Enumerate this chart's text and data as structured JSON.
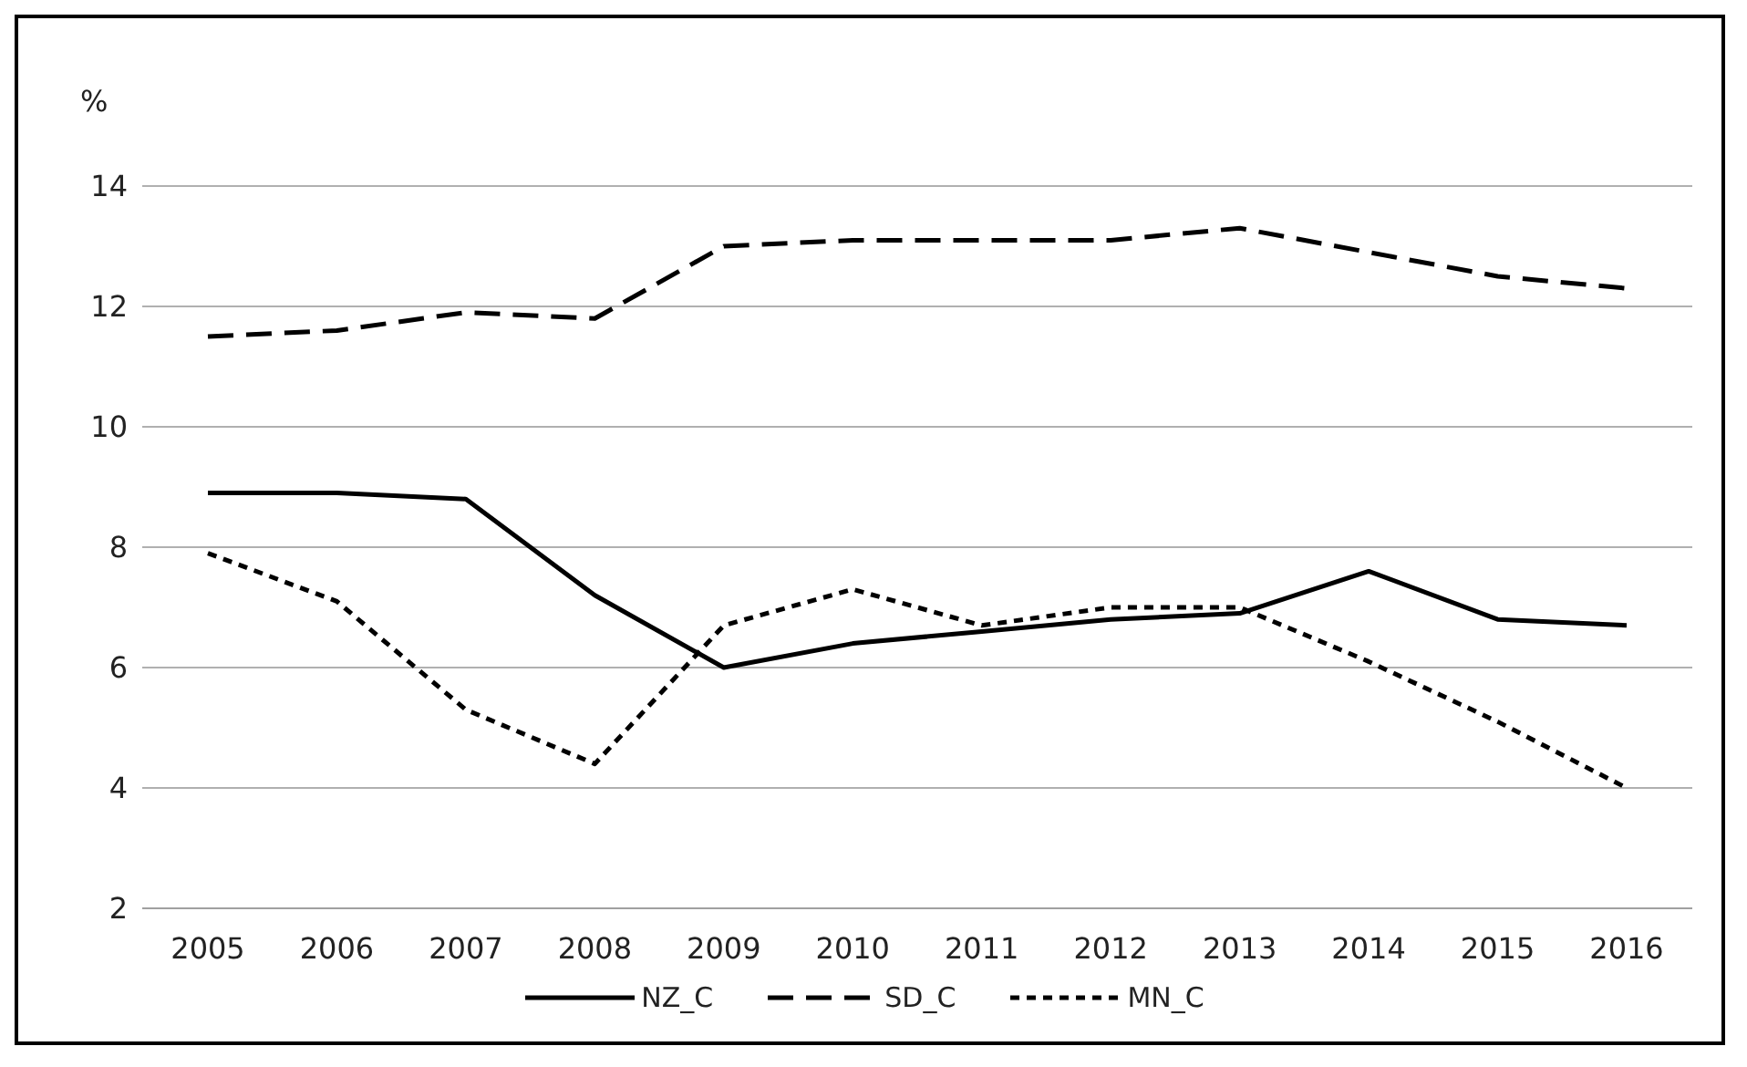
{
  "chart_data": {
    "type": "line",
    "ylabel": "%",
    "categories": [
      "2005",
      "2006",
      "2007",
      "2008",
      "2009",
      "2010",
      "2011",
      "2012",
      "2013",
      "2014",
      "2015",
      "2016"
    ],
    "series": [
      {
        "name": "NZ_C",
        "color": "#000000",
        "line_style": "solid",
        "values": [
          8.9,
          8.9,
          8.8,
          7.2,
          6.0,
          6.4,
          6.6,
          6.8,
          6.9,
          7.6,
          6.8,
          6.7
        ]
      },
      {
        "name": "SD_C",
        "color": "#000000",
        "line_style": "dashed",
        "values": [
          11.5,
          11.6,
          11.9,
          11.8,
          13.0,
          13.1,
          13.1,
          13.1,
          13.3,
          12.9,
          12.5,
          12.3
        ]
      },
      {
        "name": "MN_C",
        "color": "#000000",
        "line_style": "dotted",
        "values": [
          7.9,
          7.1,
          5.3,
          4.4,
          6.7,
          7.3,
          6.7,
          7.0,
          7.0,
          6.1,
          5.1,
          4.0
        ]
      }
    ],
    "ylim": [
      2,
      14
    ],
    "yticks": [
      2,
      4,
      6,
      8,
      10,
      12,
      14
    ],
    "grid": "y",
    "legend": "bottom",
    "marker": "none"
  }
}
